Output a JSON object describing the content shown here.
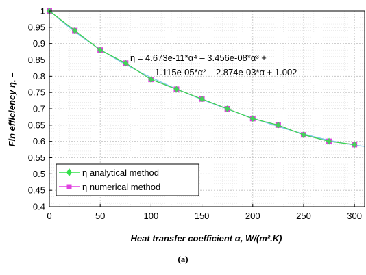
{
  "caption": "(a)",
  "chart_data": {
    "type": "line",
    "xlabel": "Heat transfer coefficient α, W/(m².K)",
    "ylabel": "Fin efficiency η, –",
    "xlim": [
      0,
      310
    ],
    "ylim": [
      0.4,
      1.0
    ],
    "xticks": [
      0,
      50,
      100,
      150,
      200,
      250,
      300
    ],
    "yticks": [
      0.4,
      0.45,
      0.5,
      0.55,
      0.6,
      0.65,
      0.7,
      0.75,
      0.8,
      0.85,
      0.9,
      0.95,
      1
    ],
    "grid": true,
    "legend_position": "bottom-left",
    "equation": {
      "line1": "η = 4.673e-11*α⁴ – 3.456e-08*α³ +",
      "line2": "1.115e-05*α² – 2.874e-03*α + 1.002"
    },
    "series": [
      {
        "name": "η analytical method",
        "color": "#33e04a",
        "marker": "diamond",
        "x": [
          0,
          25,
          50,
          75,
          100,
          125,
          150,
          175,
          200,
          225,
          250,
          275,
          300
        ],
        "values": [
          1.0,
          0.94,
          0.88,
          0.84,
          0.79,
          0.76,
          0.73,
          0.7,
          0.67,
          0.65,
          0.62,
          0.6,
          0.59
        ]
      },
      {
        "name": "η numerical method",
        "color": "#e040e0",
        "marker": "square",
        "x": [
          0,
          25,
          50,
          75,
          100,
          125,
          150,
          175,
          200,
          225,
          250,
          275,
          300
        ],
        "values": [
          1.0,
          0.94,
          0.88,
          0.84,
          0.79,
          0.76,
          0.73,
          0.7,
          0.67,
          0.65,
          0.62,
          0.6,
          0.59
        ]
      }
    ],
    "fit_line_color": "#7ac8e8"
  }
}
